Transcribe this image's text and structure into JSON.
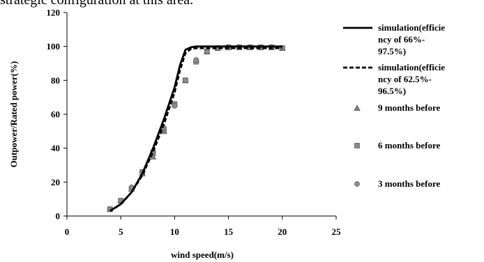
{
  "caption": "strategic configuration at this area.",
  "chart_data": {
    "type": "line",
    "xlabel": "wind speed(m/s)",
    "ylabel": "Outpower/Rated power(%)",
    "xlim": [
      0,
      25
    ],
    "ylim": [
      0,
      120
    ],
    "x_ticks": [
      0,
      5,
      10,
      15,
      20,
      25
    ],
    "y_ticks": [
      0,
      20,
      40,
      60,
      80,
      100,
      120
    ],
    "grid": false,
    "legend_position": "right",
    "series": [
      {
        "name": "simulation(efficiency of 66%-97.5%)",
        "legend_lines": [
          "simulation(efficie",
          "ncy of 66%-",
          "97.5%)"
        ],
        "kind": "line",
        "style": "solid",
        "color": "#000000",
        "x": [
          4,
          5,
          6,
          7,
          8,
          9,
          10,
          10.5,
          11,
          11.5,
          12,
          13,
          14,
          15,
          16,
          17,
          18,
          19,
          20
        ],
        "y": [
          3,
          7,
          14,
          25,
          40,
          57,
          76,
          89,
          98,
          99.5,
          100,
          100,
          100,
          100,
          100,
          100,
          100,
          100,
          100
        ]
      },
      {
        "name": "simulation(efficiency of 62.5%-96.5%)",
        "legend_lines": [
          "simulation(efficie",
          "ncy of 62.5%-",
          "96.5%)"
        ],
        "kind": "line",
        "style": "dashed",
        "color": "#000000",
        "x": [
          4,
          5,
          6,
          7,
          8,
          9,
          10,
          10.5,
          11,
          11.5,
          12,
          13,
          14,
          15,
          16,
          17,
          18,
          19,
          20
        ],
        "y": [
          3,
          7,
          14,
          24,
          38,
          54,
          73,
          86,
          96,
          98.5,
          99,
          99,
          99,
          99,
          99,
          99,
          99,
          99,
          99
        ]
      },
      {
        "name": "9 months before",
        "legend_lines": [
          "9 months before"
        ],
        "kind": "scatter",
        "marker": "triangle",
        "color": "#808080",
        "x": [
          4,
          5,
          6,
          7,
          8,
          9,
          10,
          11,
          12,
          13,
          14,
          15,
          16,
          17,
          18,
          19,
          20
        ],
        "y": [
          4,
          9,
          16,
          25,
          35,
          50,
          66,
          80,
          92,
          97,
          99,
          99.5,
          99.5,
          99.5,
          99.5,
          99.5,
          99
        ]
      },
      {
        "name": "6 months before",
        "legend_lines": [
          "6 months before"
        ],
        "kind": "scatter",
        "marker": "square",
        "color": "#8a8a8a",
        "x": [
          4,
          5,
          6,
          7,
          8,
          9,
          10,
          11,
          12,
          13,
          14,
          15,
          16,
          17,
          18,
          19,
          20
        ],
        "y": [
          4,
          9,
          16,
          26,
          37,
          51,
          66,
          80,
          91,
          97,
          99,
          99.5,
          99.5,
          99.5,
          99.5,
          99.5,
          99
        ]
      },
      {
        "name": "3 months before",
        "legend_lines": [
          "3 months before"
        ],
        "kind": "scatter",
        "marker": "circle",
        "color": "#8c8c8c",
        "x": [
          4,
          5,
          6,
          7,
          8,
          9,
          10,
          11,
          12,
          13,
          14,
          15,
          16,
          17,
          18,
          19,
          20
        ],
        "y": [
          4,
          9,
          17,
          25,
          38,
          52,
          65,
          80,
          92,
          97,
          99,
          99.5,
          99.5,
          99.5,
          99.5,
          99.5,
          99
        ]
      }
    ]
  }
}
